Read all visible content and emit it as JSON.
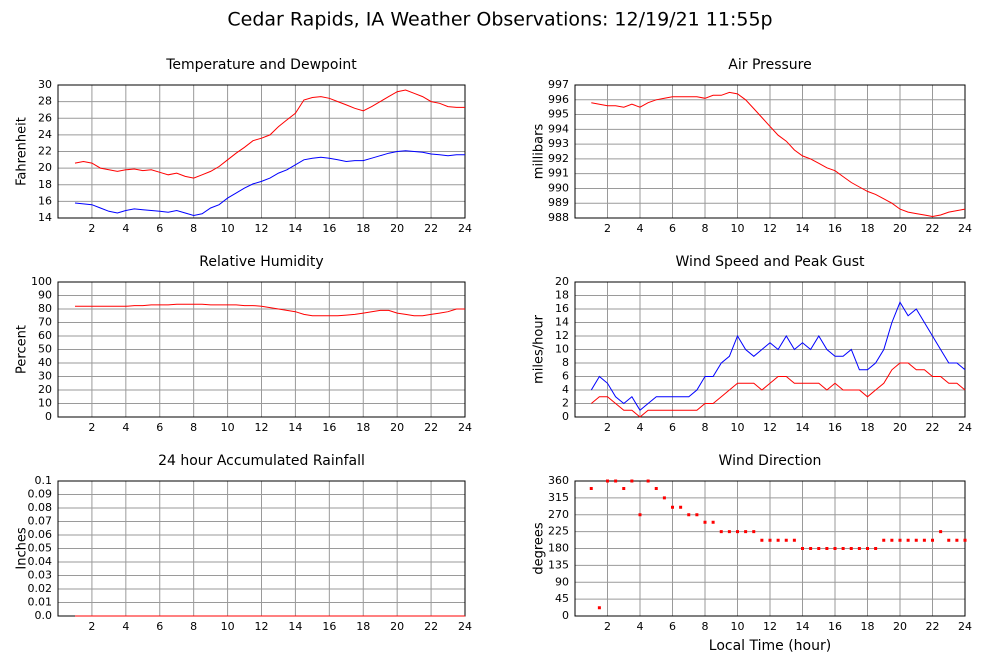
{
  "title": "Cedar Rapids, IA Weather Observations: 12/19/21 11:55p",
  "chart_data": [
    {
      "type": "line",
      "title": "Temperature and Dewpoint",
      "ylabel": "Fahrenheit",
      "x": [
        1,
        1.5,
        2,
        2.5,
        3,
        3.5,
        4,
        4.5,
        5,
        5.5,
        6,
        6.5,
        7,
        7.5,
        8,
        8.5,
        9,
        9.5,
        10,
        10.5,
        11,
        11.5,
        12,
        12.5,
        13,
        13.5,
        14,
        14.5,
        15,
        15.5,
        16,
        16.5,
        17,
        17.5,
        18,
        18.5,
        19,
        19.5,
        20,
        20.5,
        21,
        21.5,
        22,
        22.5,
        23,
        23.5,
        24
      ],
      "series": [
        {
          "color": "#ff0000",
          "values": [
            20.6,
            20.8,
            20.6,
            20.0,
            19.8,
            19.6,
            19.8,
            19.9,
            19.7,
            19.8,
            19.5,
            19.2,
            19.4,
            19.0,
            18.8,
            19.2,
            19.6,
            20.2,
            21.0,
            21.8,
            22.5,
            23.3,
            23.6,
            24.0,
            25.0,
            25.8,
            26.6,
            28.2,
            28.5,
            28.6,
            28.4,
            28.0,
            27.6,
            27.2,
            26.9,
            27.4,
            28.0,
            28.6,
            29.2,
            29.4,
            29.0,
            28.6,
            28.0,
            27.8,
            27.4,
            27.3,
            27.3
          ]
        },
        {
          "color": "#0000ff",
          "values": [
            15.8,
            15.7,
            15.6,
            15.2,
            14.8,
            14.6,
            14.9,
            15.1,
            15.0,
            14.9,
            14.8,
            14.7,
            14.9,
            14.6,
            14.3,
            14.5,
            15.2,
            15.6,
            16.4,
            17.0,
            17.6,
            18.1,
            18.4,
            18.8,
            19.4,
            19.8,
            20.4,
            21.0,
            21.2,
            21.3,
            21.2,
            21.0,
            20.8,
            20.9,
            20.9,
            21.2,
            21.5,
            21.8,
            22.0,
            22.1,
            22.0,
            21.9,
            21.7,
            21.6,
            21.5,
            21.6,
            21.6
          ]
        }
      ],
      "xlim": [
        0,
        24
      ],
      "xticks": [
        2,
        4,
        6,
        8,
        10,
        12,
        14,
        16,
        18,
        20,
        22,
        24
      ],
      "ylim": [
        14,
        30
      ],
      "yticks": [
        14,
        16,
        18,
        20,
        22,
        24,
        26,
        28,
        30
      ],
      "grid": true
    },
    {
      "type": "line",
      "title": "Air Pressure",
      "ylabel": "millibars",
      "x": [
        1,
        1.5,
        2,
        2.5,
        3,
        3.5,
        4,
        4.5,
        5,
        5.5,
        6,
        6.5,
        7,
        7.5,
        8,
        8.5,
        9,
        9.5,
        10,
        10.5,
        11,
        11.5,
        12,
        12.5,
        13,
        13.5,
        14,
        14.5,
        15,
        15.5,
        16,
        16.5,
        17,
        17.5,
        18,
        18.5,
        19,
        19.5,
        20,
        20.5,
        21,
        21.5,
        22,
        22.5,
        23,
        23.5,
        24
      ],
      "series": [
        {
          "color": "#ff0000",
          "values": [
            995.8,
            995.7,
            995.6,
            995.6,
            995.5,
            995.7,
            995.5,
            995.8,
            996.0,
            996.1,
            996.2,
            996.2,
            996.2,
            996.2,
            996.1,
            996.3,
            996.3,
            996.5,
            996.4,
            996.0,
            995.4,
            994.8,
            994.2,
            993.6,
            993.2,
            992.6,
            992.2,
            992.0,
            991.7,
            991.4,
            991.2,
            990.8,
            990.4,
            990.1,
            989.8,
            989.6,
            989.3,
            989.0,
            988.6,
            988.4,
            988.3,
            988.2,
            988.1,
            988.2,
            988.4,
            988.5,
            988.6
          ]
        }
      ],
      "xlim": [
        0,
        24
      ],
      "xticks": [
        2,
        4,
        6,
        8,
        10,
        12,
        14,
        16,
        18,
        20,
        22,
        24
      ],
      "ylim": [
        988,
        997
      ],
      "yticks": [
        988,
        989,
        990,
        991,
        992,
        993,
        994,
        995,
        996,
        997
      ],
      "grid": true
    },
    {
      "type": "line",
      "title": "Relative Humidity",
      "ylabel": "Percent",
      "x": [
        1,
        1.5,
        2,
        2.5,
        3,
        3.5,
        4,
        4.5,
        5,
        5.5,
        6,
        6.5,
        7,
        7.5,
        8,
        8.5,
        9,
        9.5,
        10,
        10.5,
        11,
        11.5,
        12,
        12.5,
        13,
        13.5,
        14,
        14.5,
        15,
        15.5,
        16,
        16.5,
        17,
        17.5,
        18,
        18.5,
        19,
        19.5,
        20,
        20.5,
        21,
        21.5,
        22,
        22.5,
        23,
        23.5,
        24
      ],
      "series": [
        {
          "color": "#ff0000",
          "values": [
            82,
            82,
            82,
            82,
            82,
            82,
            82,
            82.5,
            82.5,
            83,
            83,
            83,
            83.5,
            83.5,
            83.5,
            83.5,
            83,
            83,
            83,
            83,
            82.5,
            82.5,
            82,
            81,
            80,
            79,
            78,
            76,
            75,
            75,
            75,
            75,
            75.5,
            76,
            77,
            78,
            79,
            79,
            77,
            76,
            75,
            75,
            76,
            77,
            78,
            80,
            80
          ]
        }
      ],
      "xlim": [
        0,
        24
      ],
      "xticks": [
        2,
        4,
        6,
        8,
        10,
        12,
        14,
        16,
        18,
        20,
        22,
        24
      ],
      "ylim": [
        0,
        100
      ],
      "yticks": [
        0,
        10,
        20,
        30,
        40,
        50,
        60,
        70,
        80,
        90,
        100
      ],
      "grid": true
    },
    {
      "type": "line",
      "title": "Wind Speed and Peak Gust",
      "ylabel": "miles/hour",
      "x": [
        1,
        1.5,
        2,
        2.5,
        3,
        3.5,
        4,
        4.5,
        5,
        5.5,
        6,
        6.5,
        7,
        7.5,
        8,
        8.5,
        9,
        9.5,
        10,
        10.5,
        11,
        11.5,
        12,
        12.5,
        13,
        13.5,
        14,
        14.5,
        15,
        15.5,
        16,
        16.5,
        17,
        17.5,
        18,
        18.5,
        19,
        19.5,
        20,
        20.5,
        21,
        21.5,
        22,
        22.5,
        23,
        23.5,
        24
      ],
      "series": [
        {
          "color": "#0000ff",
          "values": [
            4,
            6,
            5,
            3,
            2,
            3,
            1,
            2,
            3,
            3,
            3,
            3,
            3,
            4,
            6,
            6,
            8,
            9,
            12,
            10,
            9,
            10,
            11,
            10,
            12,
            10,
            11,
            10,
            12,
            10,
            9,
            9,
            10,
            7,
            7,
            8,
            10,
            14,
            17,
            15,
            16,
            14,
            12,
            10,
            8,
            8,
            7
          ]
        },
        {
          "color": "#ff0000",
          "values": [
            2,
            3,
            3,
            2,
            1,
            1,
            0,
            1,
            1,
            1,
            1,
            1,
            1,
            1,
            2,
            2,
            3,
            4,
            5,
            5,
            5,
            4,
            5,
            6,
            6,
            5,
            5,
            5,
            5,
            4,
            5,
            4,
            4,
            4,
            3,
            4,
            5,
            7,
            8,
            8,
            7,
            7,
            6,
            6,
            5,
            5,
            4
          ]
        }
      ],
      "xlim": [
        0,
        24
      ],
      "xticks": [
        2,
        4,
        6,
        8,
        10,
        12,
        14,
        16,
        18,
        20,
        22,
        24
      ],
      "ylim": [
        0,
        20
      ],
      "yticks": [
        0,
        2,
        4,
        6,
        8,
        10,
        12,
        14,
        16,
        18,
        20
      ],
      "grid": true
    },
    {
      "type": "line",
      "title": "24 hour Accumulated Rainfall",
      "ylabel": "Inches",
      "x": [
        1,
        1.5,
        2,
        2.5,
        3,
        3.5,
        4,
        4.5,
        5,
        5.5,
        6,
        6.5,
        7,
        7.5,
        8,
        8.5,
        9,
        9.5,
        10,
        10.5,
        11,
        11.5,
        12,
        12.5,
        13,
        13.5,
        14,
        14.5,
        15,
        15.5,
        16,
        16.5,
        17,
        17.5,
        18,
        18.5,
        19,
        19.5,
        20,
        20.5,
        21,
        21.5,
        22,
        22.5,
        23,
        23.5,
        24
      ],
      "series": [
        {
          "color": "#ff0000",
          "values": [
            0,
            0,
            0,
            0,
            0,
            0,
            0,
            0,
            0,
            0,
            0,
            0,
            0,
            0,
            0,
            0,
            0,
            0,
            0,
            0,
            0,
            0,
            0,
            0,
            0,
            0,
            0,
            0,
            0,
            0,
            0,
            0,
            0,
            0,
            0,
            0,
            0,
            0,
            0,
            0,
            0,
            0,
            0,
            0,
            0,
            0,
            0
          ]
        }
      ],
      "xlim": [
        0,
        24
      ],
      "xticks": [
        2,
        4,
        6,
        8,
        10,
        12,
        14,
        16,
        18,
        20,
        22,
        24
      ],
      "ylim": [
        0,
        0.1
      ],
      "yticks": [
        {
          "value": 0,
          "label": "0.0"
        },
        0.01,
        0.02,
        0.03,
        0.04,
        0.05,
        0.06,
        0.07,
        0.08,
        0.09,
        0.1
      ],
      "grid": true
    },
    {
      "type": "scatter",
      "title": "Wind Direction",
      "ylabel": "degrees",
      "xlabel": "Local Time (hour)",
      "x": [
        1,
        1.5,
        2,
        2.5,
        3,
        3.5,
        4,
        4.5,
        5,
        5.5,
        6,
        6.5,
        7,
        7.5,
        8,
        8.5,
        9,
        9.5,
        10,
        10.5,
        11,
        11.5,
        12,
        12.5,
        13,
        13.5,
        14,
        14.5,
        15,
        15.5,
        16,
        16.5,
        17,
        17.5,
        18,
        18.5,
        19,
        19.5,
        20,
        20.5,
        21,
        21.5,
        22,
        22.5,
        23,
        23.5,
        24
      ],
      "series": [
        {
          "color": "#ff0000",
          "values": [
            340,
            22,
            360,
            360,
            340,
            360,
            270,
            360,
            340,
            315,
            290,
            290,
            270,
            270,
            250,
            250,
            225,
            225,
            225,
            225,
            225,
            202,
            202,
            202,
            202,
            202,
            180,
            180,
            180,
            180,
            180,
            180,
            180,
            180,
            180,
            180,
            202,
            202,
            202,
            202,
            202,
            202,
            202,
            225,
            202,
            202,
            202
          ]
        }
      ],
      "xlim": [
        0,
        24
      ],
      "xticks": [
        2,
        4,
        6,
        8,
        10,
        12,
        14,
        16,
        18,
        20,
        22,
        24
      ],
      "ylim": [
        0,
        360
      ],
      "yticks": [
        0,
        45,
        90,
        135,
        180,
        225,
        270,
        315,
        360
      ],
      "grid": true
    }
  ]
}
